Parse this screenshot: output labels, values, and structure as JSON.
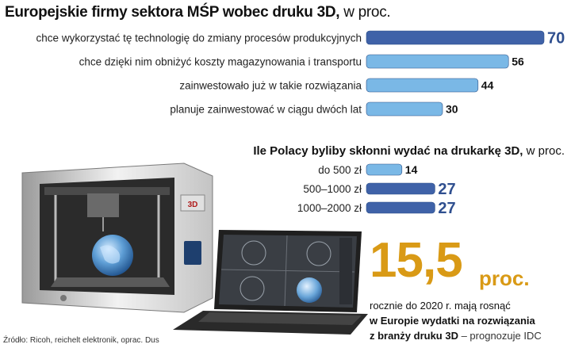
{
  "chart_data": [
    {
      "type": "bar",
      "orientation": "horizontal",
      "title": "Europejskie firmy sektora MŚP wobec druku 3D,",
      "unit": "w proc.",
      "categories": [
        "chce wykorzystać tę technologię do zmiany procesów produkcyjnych",
        "chce dzięki nim obniżyć koszty magazynowania i transportu",
        "zainwestowało już w takie rozwiązania",
        "planuje zainwestować w ciągu dwóch lat"
      ],
      "values": [
        70,
        56,
        44,
        30
      ],
      "colors": [
        "#3f62a8",
        "#7ab8e6",
        "#7ab8e6",
        "#7ab8e6"
      ]
    },
    {
      "type": "bar",
      "orientation": "horizontal",
      "title": "Ile Polacy byliby skłonni wydać na drukarkę 3D,",
      "unit": "w proc.",
      "categories": [
        "do 500 zł",
        "500–1000 zł",
        "1000–2000 zł"
      ],
      "values": [
        14,
        27,
        27
      ],
      "colors": [
        "#7ab8e6",
        "#3f62a8",
        "#3f62a8"
      ]
    }
  ],
  "highlight": {
    "number": "15,5",
    "unit": "proc.",
    "line1": "rocznie do 2020 r. mają rosnąć",
    "line2": "w Europie wydatki na rozwiązania",
    "line3": "z branży druku 3D",
    "forecast": "– prognozuje IDC"
  },
  "printer_logo": "3D",
  "source": "Źródło: Ricoh, reichelt elektronik, oprac. Dus"
}
